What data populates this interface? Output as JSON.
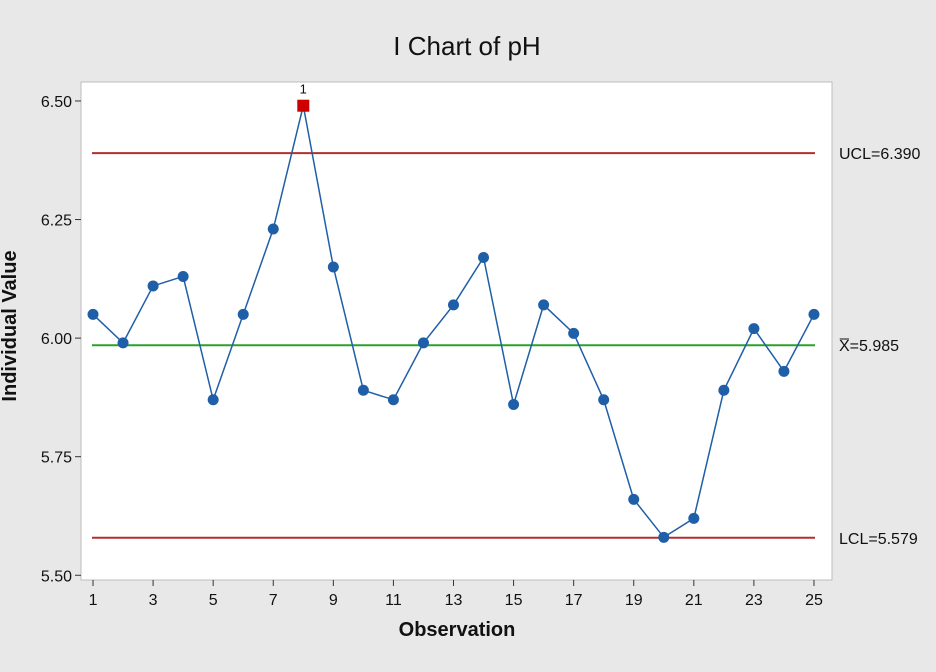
{
  "chart_data": {
    "type": "line",
    "title": "I Chart of pH",
    "xlabel": "Observation",
    "ylabel": "Individual Value",
    "xlim": [
      0.6,
      25.6
    ],
    "ylim": [
      5.49,
      6.54
    ],
    "x_ticks": [
      1,
      3,
      5,
      7,
      9,
      11,
      13,
      15,
      17,
      19,
      21,
      23,
      25
    ],
    "x_tick_labels": [
      "1",
      "3",
      "5",
      "7",
      "9",
      "11",
      "13",
      "15",
      "17",
      "19",
      "21",
      "23",
      "25"
    ],
    "y_ticks": [
      5.5,
      5.75,
      6.0,
      6.25,
      6.5
    ],
    "y_tick_labels": [
      "5.50",
      "5.75",
      "6.00",
      "6.25",
      "6.50"
    ],
    "grid": false,
    "x": [
      1,
      2,
      3,
      4,
      5,
      6,
      7,
      8,
      9,
      10,
      11,
      12,
      13,
      14,
      15,
      16,
      17,
      18,
      19,
      20,
      21,
      22,
      23,
      24,
      25
    ],
    "values": [
      6.05,
      5.99,
      6.11,
      6.13,
      5.87,
      6.05,
      6.23,
      6.49,
      6.15,
      5.89,
      5.87,
      5.99,
      6.07,
      6.17,
      5.86,
      6.07,
      6.01,
      5.87,
      5.66,
      5.58,
      5.62,
      5.89,
      6.02,
      5.93,
      6.05
    ],
    "series_color": "#1f5fa8",
    "out_of_control": [
      {
        "x": 8,
        "flag": "1",
        "color": "#cc0000"
      }
    ],
    "control_limits": [
      {
        "name": "UCL",
        "value": 6.39,
        "label": "UCL=6.390",
        "color": "#b03030"
      },
      {
        "name": "CL",
        "value": 5.985,
        "label": "X̅=5.985",
        "color": "#2ca02c"
      },
      {
        "name": "LCL",
        "value": 5.579,
        "label": "LCL=5.579",
        "color": "#b03030"
      }
    ]
  }
}
